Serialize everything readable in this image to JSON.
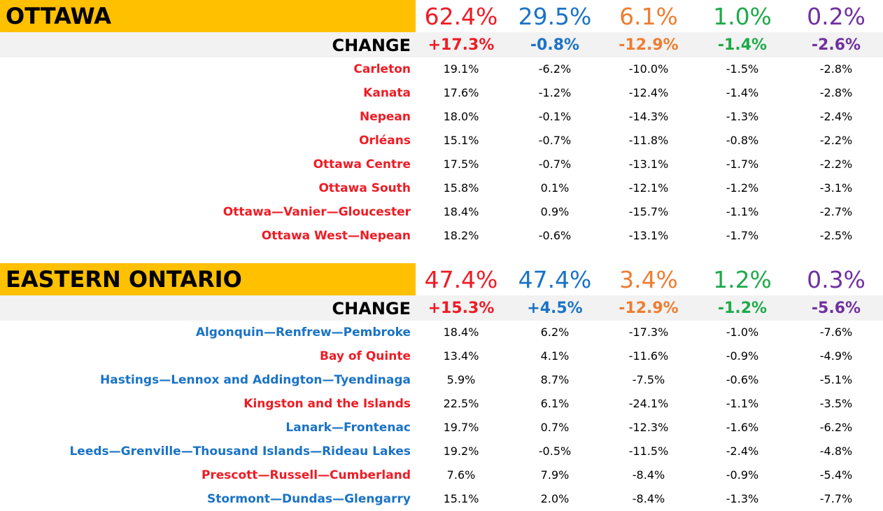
{
  "colors": {
    "header_bg": "#ffc000",
    "change_bg": "#f2f2f2",
    "party": [
      "#ee1c25",
      "#1a73c6",
      "#ee7d31",
      "#1eaa4a",
      "#7030a0"
    ]
  },
  "change_label": "CHANGE",
  "sections": [
    {
      "name": "OTTAWA",
      "totals": [
        "62.4%",
        "29.5%",
        "6.1%",
        "1.0%",
        "0.2%"
      ],
      "changes": [
        "+17.3%",
        "-0.8%",
        "-12.9%",
        "-1.4%",
        "-2.6%"
      ],
      "ridings": [
        {
          "name": "Carleton",
          "color": "#ee1c25",
          "values": [
            "19.1%",
            "-6.2%",
            "-10.0%",
            "-1.5%",
            "-2.8%"
          ]
        },
        {
          "name": "Kanata",
          "color": "#ee1c25",
          "values": [
            "17.6%",
            "-1.2%",
            "-12.4%",
            "-1.4%",
            "-2.8%"
          ]
        },
        {
          "name": "Nepean",
          "color": "#ee1c25",
          "values": [
            "18.0%",
            "-0.1%",
            "-14.3%",
            "-1.3%",
            "-2.4%"
          ]
        },
        {
          "name": "Orléans",
          "color": "#ee1c25",
          "values": [
            "15.1%",
            "-0.7%",
            "-11.8%",
            "-0.8%",
            "-2.2%"
          ]
        },
        {
          "name": "Ottawa Centre",
          "color": "#ee1c25",
          "values": [
            "17.5%",
            "-0.7%",
            "-13.1%",
            "-1.7%",
            "-2.2%"
          ]
        },
        {
          "name": "Ottawa South",
          "color": "#ee1c25",
          "values": [
            "15.8%",
            "0.1%",
            "-12.1%",
            "-1.2%",
            "-3.1%"
          ]
        },
        {
          "name": "Ottawa—Vanier—Gloucester",
          "color": "#ee1c25",
          "values": [
            "18.4%",
            "0.9%",
            "-15.7%",
            "-1.1%",
            "-2.7%"
          ]
        },
        {
          "name": "Ottawa West—Nepean",
          "color": "#ee1c25",
          "values": [
            "18.2%",
            "-0.6%",
            "-13.1%",
            "-1.7%",
            "-2.5%"
          ]
        }
      ]
    },
    {
      "name": "EASTERN ONTARIO",
      "totals": [
        "47.4%",
        "47.4%",
        "3.4%",
        "1.2%",
        "0.3%"
      ],
      "changes": [
        "+15.3%",
        "+4.5%",
        "-12.9%",
        "-1.2%",
        "-5.6%"
      ],
      "ridings": [
        {
          "name": "Algonquin—Renfrew—Pembroke",
          "color": "#1a73c6",
          "values": [
            "18.4%",
            "6.2%",
            "-17.3%",
            "-1.0%",
            "-7.6%"
          ]
        },
        {
          "name": "Bay of Quinte",
          "color": "#ee1c25",
          "values": [
            "13.4%",
            "4.1%",
            "-11.6%",
            "-0.9%",
            "-4.9%"
          ]
        },
        {
          "name": "Hastings—Lennox and Addington—Tyendinaga",
          "color": "#1a73c6",
          "values": [
            "5.9%",
            "8.7%",
            "-7.5%",
            "-0.6%",
            "-5.1%"
          ]
        },
        {
          "name": "Kingston and the Islands",
          "color": "#ee1c25",
          "values": [
            "22.5%",
            "6.1%",
            "-24.1%",
            "-1.1%",
            "-3.5%"
          ]
        },
        {
          "name": "Lanark—Frontenac",
          "color": "#1a73c6",
          "values": [
            "19.7%",
            "0.7%",
            "-12.3%",
            "-1.6%",
            "-6.2%"
          ]
        },
        {
          "name": "Leeds—Grenville—Thousand Islands—Rideau Lakes",
          "color": "#1a73c6",
          "values": [
            "19.2%",
            "-0.5%",
            "-11.5%",
            "-2.4%",
            "-4.8%"
          ]
        },
        {
          "name": "Prescott—Russell—Cumberland",
          "color": "#ee1c25",
          "values": [
            "7.6%",
            "7.9%",
            "-8.4%",
            "-0.9%",
            "-5.4%"
          ]
        },
        {
          "name": "Stormont—Dundas—Glengarry",
          "color": "#1a73c6",
          "values": [
            "15.1%",
            "2.0%",
            "-8.4%",
            "-1.3%",
            "-7.7%"
          ]
        }
      ]
    }
  ]
}
